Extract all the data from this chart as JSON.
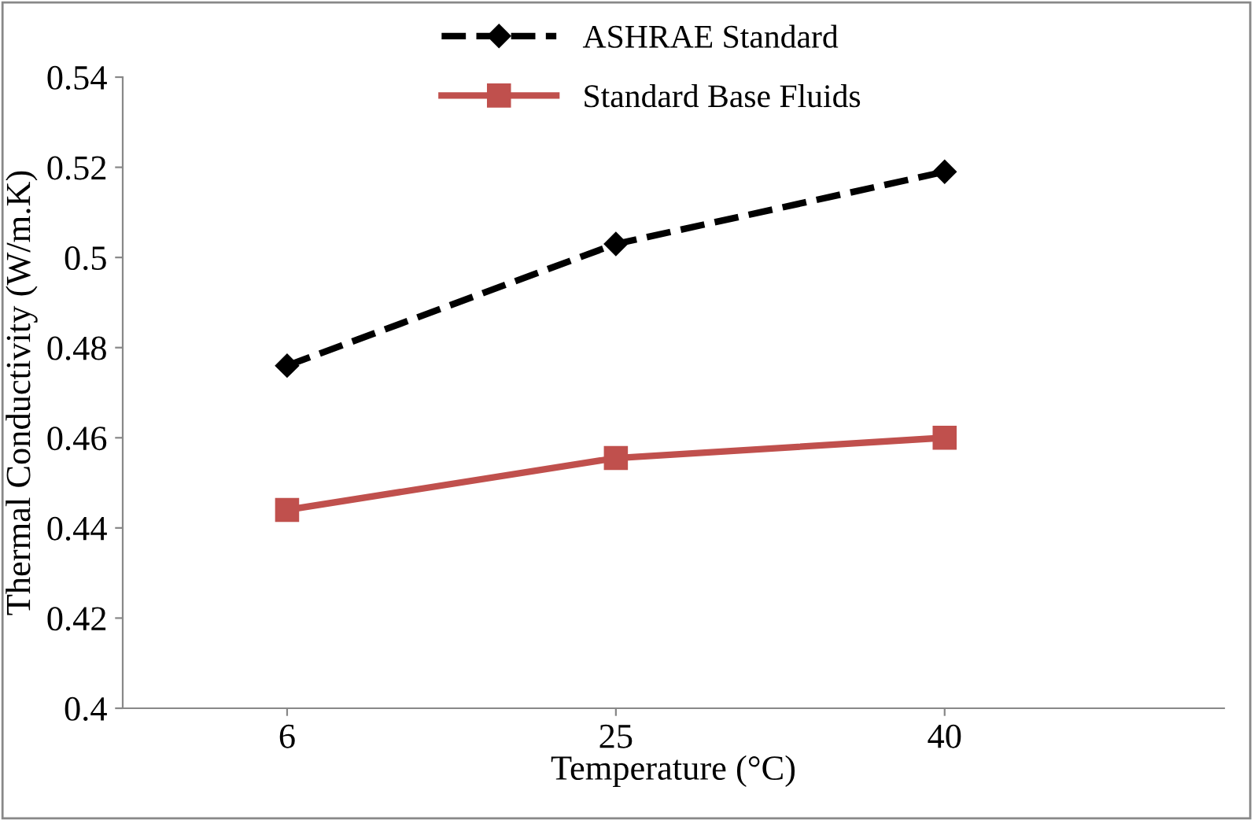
{
  "chart_data": {
    "type": "line",
    "xlabel": "Temperature (°C)",
    "ylabel": "Thermal Conductivity (W/m.K)",
    "categories": [
      "6",
      "25",
      "40"
    ],
    "series": [
      {
        "name": "ASHRAE Standard",
        "color": "#000000",
        "values": [
          0.476,
          0.503,
          0.519
        ],
        "marker": "diamond",
        "line_style": "dashed"
      },
      {
        "name": "Standard Base Fluids",
        "color": "#c0504d",
        "values": [
          0.444,
          0.4555,
          0.46
        ],
        "marker": "square",
        "line_style": "solid"
      }
    ],
    "ylim": [
      0.4,
      0.54
    ],
    "yticks": [
      0.4,
      0.42,
      0.44,
      0.46,
      0.48,
      0.5,
      0.52,
      0.54
    ],
    "grid": false,
    "legend": "top"
  }
}
